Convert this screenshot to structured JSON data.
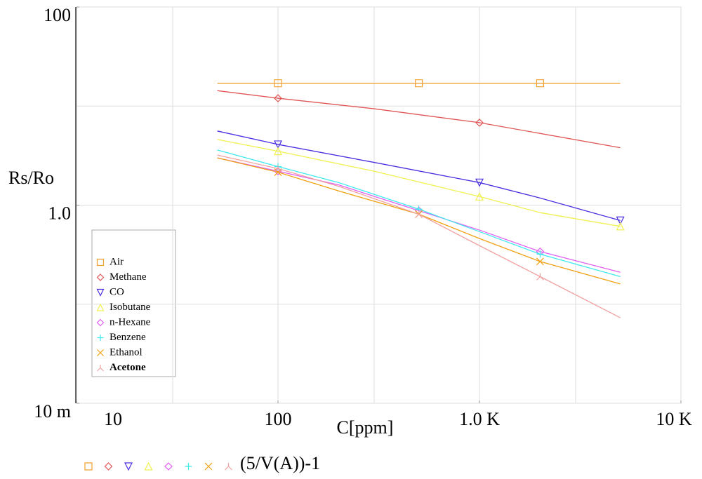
{
  "chart_data": {
    "type": "line",
    "x_label": "C[ppm]",
    "y_label": "Rs/Ro",
    "footer_label": "(5/V(A))-1",
    "log_x": true,
    "log_y": true,
    "grid": true,
    "xlim": [
      10,
      10000
    ],
    "ylim": [
      0.01,
      100
    ],
    "xticks": [
      10,
      100,
      {
        "value": 1000,
        "label": "1.0 K"
      },
      {
        "value": 10000,
        "label": "10 K"
      }
    ],
    "yticks": [
      {
        "value": 0.01,
        "label": "10 m"
      },
      {
        "value": 1,
        "label": "1.0"
      },
      100
    ],
    "xgrid": [
      30,
      100,
      300,
      1000,
      3000
    ],
    "ygrid": [
      0.1,
      1,
      10
    ],
    "series": [
      {
        "name": "Air",
        "color": "#f0a030",
        "marker": "square",
        "x": [
          50,
          100,
          200,
          500,
          1000,
          2000,
          5000
        ],
        "values": [
          17,
          17,
          17,
          17,
          17,
          17,
          17
        ]
      },
      {
        "name": "Methane",
        "color": "#e05555",
        "marker": "diamond",
        "x": [
          50,
          100,
          300,
          1000,
          5000
        ],
        "values": [
          14.3,
          12.0,
          9.4,
          6.8,
          3.8
        ]
      },
      {
        "name": "CO",
        "color": "#4a30e0",
        "marker": "tri-down",
        "x": [
          50,
          100,
          300,
          1000,
          2000,
          5000
        ],
        "values": [
          5.6,
          4.1,
          2.7,
          1.69,
          1.18,
          0.7
        ]
      },
      {
        "name": "Isobutane",
        "color": "#f0f050",
        "marker": "tri-up",
        "x": [
          50,
          100,
          300,
          1000,
          2000,
          5000
        ],
        "values": [
          4.6,
          3.5,
          2.2,
          1.22,
          0.84,
          0.61
        ]
      },
      {
        "name": "n-Hexane",
        "color": "#e060f0",
        "marker": "diamond",
        "x": [
          50,
          100,
          200,
          500,
          1000,
          2000,
          5000
        ],
        "values": [
          3.0,
          2.2,
          1.6,
          0.88,
          0.56,
          0.34,
          0.21
        ]
      },
      {
        "name": "Benzene",
        "color": "#40e8f0",
        "marker": "plus",
        "x": [
          50,
          100,
          200,
          500,
          1000,
          2000,
          5000
        ],
        "values": [
          3.6,
          2.45,
          1.69,
          0.91,
          0.54,
          0.32,
          0.19
        ]
      },
      {
        "name": "Ethanol",
        "color": "#f0a010",
        "marker": "cross",
        "x": [
          50,
          100,
          200,
          500,
          1000,
          2000,
          5000
        ],
        "values": [
          3.0,
          2.15,
          1.39,
          0.81,
          0.46,
          0.27,
          0.16
        ]
      },
      {
        "name": "Acetone",
        "color": "#f0a0a0",
        "marker": "tri-y",
        "x": [
          50,
          100,
          200,
          500,
          1000,
          2000,
          5000
        ],
        "values": [
          3.2,
          2.34,
          1.55,
          0.81,
          0.39,
          0.19,
          0.073
        ]
      }
    ]
  }
}
